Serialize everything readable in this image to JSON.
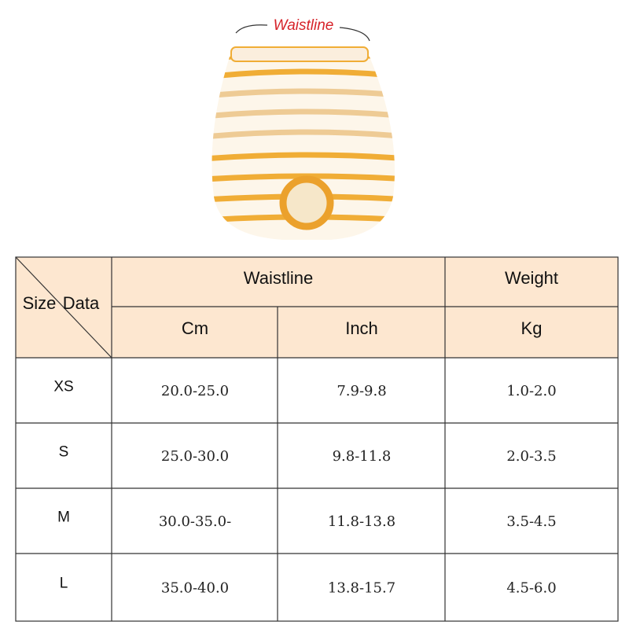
{
  "label": "Waistline",
  "table": {
    "corner": {
      "size": "Size",
      "data": "Data"
    },
    "header_groups": [
      "Waistline",
      "Weight"
    ],
    "units": [
      "Cm",
      "Inch",
      "Kg"
    ],
    "rows": [
      [
        "XS",
        "20.0-25.0",
        "7.9-9.8",
        "1.0-2.0"
      ],
      [
        "S",
        "25.0-30.0",
        "9.8-11.8",
        "2.0-3.5"
      ],
      [
        "M",
        "30.0-35.0-",
        "11.8-13.8",
        "3.5-4.5"
      ],
      [
        "L",
        "35.0-40.0",
        "13.8-15.7",
        "4.5-6.0"
      ]
    ]
  }
}
